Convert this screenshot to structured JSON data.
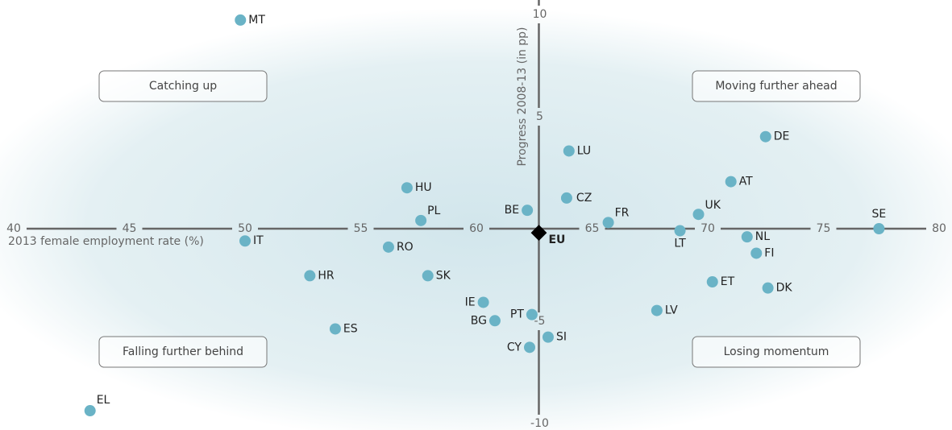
{
  "chart_data": {
    "type": "scatter",
    "x_label": "2013 female employment rate (%)",
    "y_label": "Progress 2008-13 (in pp)",
    "annotations": [
      "Catching up",
      "Moving further ahead",
      "Falling further behind",
      "Losing momentum"
    ],
    "labels": [
      "MT",
      "DE",
      "LU",
      "AT",
      "HU",
      "CZ",
      "UK",
      "BE",
      "PL",
      "FR",
      "SE",
      "EU",
      "LT",
      "IT",
      "NL",
      "RO",
      "FI",
      "HR",
      "SK",
      "ET",
      "DK",
      "IE",
      "LV",
      "PT",
      "BG",
      "ES",
      "SI",
      "CY",
      "EL"
    ],
    "x": [
      49.8,
      72.5,
      64.0,
      71.0,
      57.0,
      63.9,
      69.6,
      62.2,
      57.6,
      65.7,
      77.4,
      62.7,
      68.8,
      50.0,
      71.7,
      56.2,
      72.1,
      52.8,
      57.9,
      70.2,
      72.6,
      60.3,
      67.8,
      62.4,
      60.8,
      53.9,
      63.1,
      62.3,
      43.3
    ],
    "y": [
      10.2,
      4.5,
      3.8,
      2.3,
      2.0,
      1.5,
      0.7,
      0.9,
      0.4,
      0.3,
      0.0,
      -0.2,
      -0.1,
      -0.6,
      -0.4,
      -0.9,
      -1.2,
      -2.3,
      -2.3,
      -2.6,
      -2.9,
      -3.6,
      -4.0,
      -4.2,
      -4.5,
      -4.9,
      -5.3,
      -5.8,
      -8.9
    ],
    "color": "#6ab3c6",
    "highlight": "EU",
    "highlight_color": "#000000",
    "xlim": [
      40,
      80
    ],
    "xticks": [
      40,
      45,
      50,
      55,
      60,
      65,
      70,
      75,
      80
    ],
    "ylim": [
      -10,
      10
    ],
    "yticks": [
      -10,
      -5,
      5,
      10
    ]
  }
}
